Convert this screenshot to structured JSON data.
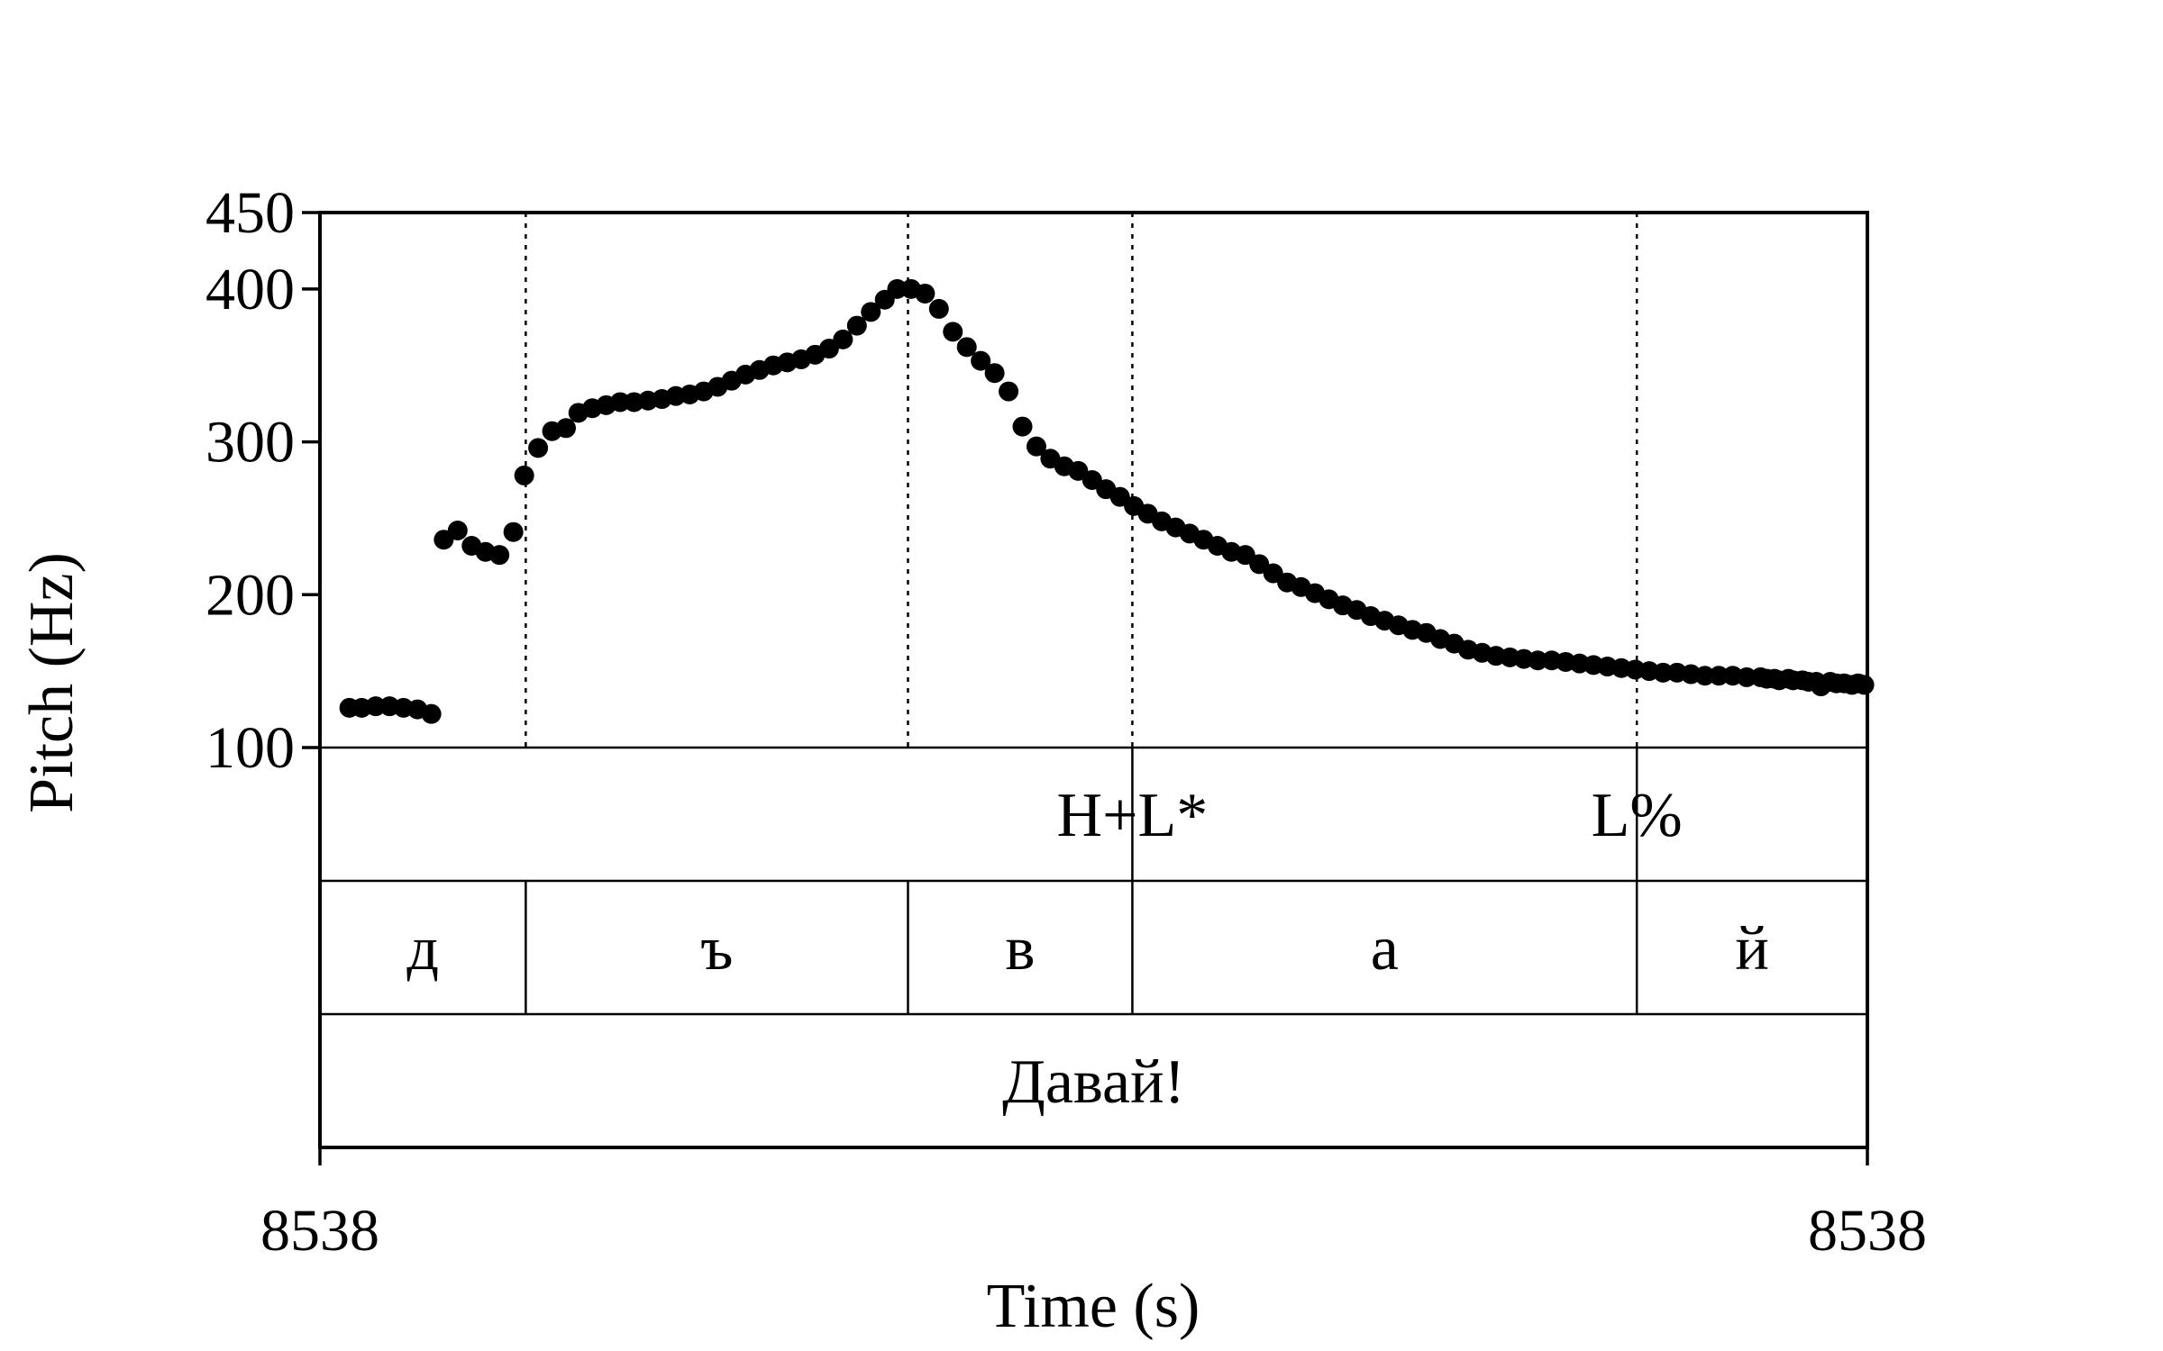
{
  "chart_data": {
    "type": "scatter",
    "title": "",
    "xlabel": "Time (s)",
    "ylabel": "Pitch (Hz)",
    "x_tick_labels": [
      "8538",
      "8538"
    ],
    "ylim": [
      100,
      450
    ],
    "yticks": [
      100,
      200,
      300,
      400,
      450
    ],
    "grid": false,
    "colors": {
      "points": "#000000",
      "axes": "#000000"
    },
    "x_fraction_range": [
      0,
      1
    ],
    "series": [
      {
        "values": [
          [
            0.019,
            126
          ],
          [
            0.027,
            126
          ],
          [
            0.036,
            127
          ],
          [
            0.045,
            127
          ],
          [
            0.054,
            126
          ],
          [
            0.063,
            125
          ],
          [
            0.072,
            122
          ],
          [
            0.08,
            236
          ],
          [
            0.089,
            242
          ],
          [
            0.098,
            232
          ],
          [
            0.107,
            228
          ],
          [
            0.116,
            226
          ],
          [
            0.125,
            241
          ],
          [
            0.132,
            278
          ],
          [
            0.141,
            296
          ],
          [
            0.15,
            307
          ],
          [
            0.159,
            309
          ],
          [
            0.167,
            319
          ],
          [
            0.176,
            322
          ],
          [
            0.185,
            324
          ],
          [
            0.194,
            326
          ],
          [
            0.203,
            326
          ],
          [
            0.212,
            327
          ],
          [
            0.221,
            328
          ],
          [
            0.23,
            330
          ],
          [
            0.239,
            331
          ],
          [
            0.248,
            333
          ],
          [
            0.257,
            336
          ],
          [
            0.266,
            340
          ],
          [
            0.275,
            344
          ],
          [
            0.284,
            347
          ],
          [
            0.293,
            350
          ],
          [
            0.302,
            352
          ],
          [
            0.311,
            354
          ],
          [
            0.32,
            357
          ],
          [
            0.329,
            361
          ],
          [
            0.338,
            367
          ],
          [
            0.347,
            376
          ],
          [
            0.356,
            385
          ],
          [
            0.365,
            393
          ],
          [
            0.373,
            400
          ],
          [
            0.382,
            400
          ],
          [
            0.391,
            397
          ],
          [
            0.4,
            387
          ],
          [
            0.409,
            372
          ],
          [
            0.418,
            362
          ],
          [
            0.427,
            353
          ],
          [
            0.436,
            345
          ],
          [
            0.445,
            333
          ],
          [
            0.454,
            310
          ],
          [
            0.463,
            297
          ],
          [
            0.472,
            289
          ],
          [
            0.481,
            284
          ],
          [
            0.49,
            281
          ],
          [
            0.499,
            275
          ],
          [
            0.508,
            269
          ],
          [
            0.517,
            264
          ],
          [
            0.526,
            258
          ],
          [
            0.535,
            253
          ],
          [
            0.544,
            248
          ],
          [
            0.553,
            244
          ],
          [
            0.562,
            240
          ],
          [
            0.571,
            236
          ],
          [
            0.58,
            232
          ],
          [
            0.589,
            228
          ],
          [
            0.598,
            226
          ],
          [
            0.607,
            220
          ],
          [
            0.616,
            214
          ],
          [
            0.625,
            208
          ],
          [
            0.634,
            205
          ],
          [
            0.643,
            201
          ],
          [
            0.652,
            197
          ],
          [
            0.661,
            193
          ],
          [
            0.67,
            190
          ],
          [
            0.679,
            186
          ],
          [
            0.688,
            183
          ],
          [
            0.697,
            180
          ],
          [
            0.706,
            177
          ],
          [
            0.715,
            175
          ],
          [
            0.724,
            171
          ],
          [
            0.733,
            168
          ],
          [
            0.742,
            164
          ],
          [
            0.751,
            162
          ],
          [
            0.76,
            160
          ],
          [
            0.769,
            159
          ],
          [
            0.778,
            158
          ],
          [
            0.787,
            157
          ],
          [
            0.796,
            157
          ],
          [
            0.805,
            156
          ],
          [
            0.814,
            155
          ],
          [
            0.823,
            154
          ],
          [
            0.832,
            153
          ],
          [
            0.841,
            152
          ],
          [
            0.85,
            151
          ],
          [
            0.859,
            150
          ],
          [
            0.868,
            149
          ],
          [
            0.877,
            149
          ],
          [
            0.886,
            148
          ],
          [
            0.895,
            147
          ],
          [
            0.904,
            147
          ],
          [
            0.913,
            147
          ],
          [
            0.922,
            146
          ],
          [
            0.931,
            146
          ],
          [
            0.94,
            145
          ],
          [
            0.949,
            145
          ],
          [
            0.958,
            144
          ],
          [
            0.967,
            143
          ],
          [
            0.976,
            143
          ],
          [
            0.985,
            142
          ],
          [
            0.994,
            142
          ],
          [
            0.998,
            141
          ],
          [
            0.935,
            145
          ],
          [
            0.943,
            144
          ],
          [
            0.952,
            144
          ],
          [
            0.962,
            143
          ],
          [
            0.97,
            140
          ],
          [
            0.98,
            142
          ],
          [
            0.99,
            141
          ]
        ]
      }
    ],
    "tiers": [
      {
        "name": "tones",
        "boundaries": [
          0.525,
          0.851
        ],
        "labels": [
          {
            "text": "H+L*",
            "at": 0.525
          },
          {
            "text": "L%",
            "at": 0.851
          }
        ]
      },
      {
        "name": "segments",
        "boundaries": [
          0.133,
          0.38,
          0.525,
          0.851
        ],
        "labels": [
          {
            "text": "д",
            "from": 0,
            "to": 0.133
          },
          {
            "text": "ъ",
            "from": 0.133,
            "to": 0.38
          },
          {
            "text": "в",
            "from": 0.38,
            "to": 0.525
          },
          {
            "text": "а",
            "from": 0.525,
            "to": 0.851
          },
          {
            "text": "й",
            "from": 0.851,
            "to": 1
          }
        ]
      },
      {
        "name": "words",
        "boundaries": [],
        "labels": [
          {
            "text": "Давай!",
            "from": 0,
            "to": 1
          }
        ]
      }
    ],
    "dotted_boundaries": [
      0.133,
      0.38,
      0.525,
      0.851
    ]
  }
}
